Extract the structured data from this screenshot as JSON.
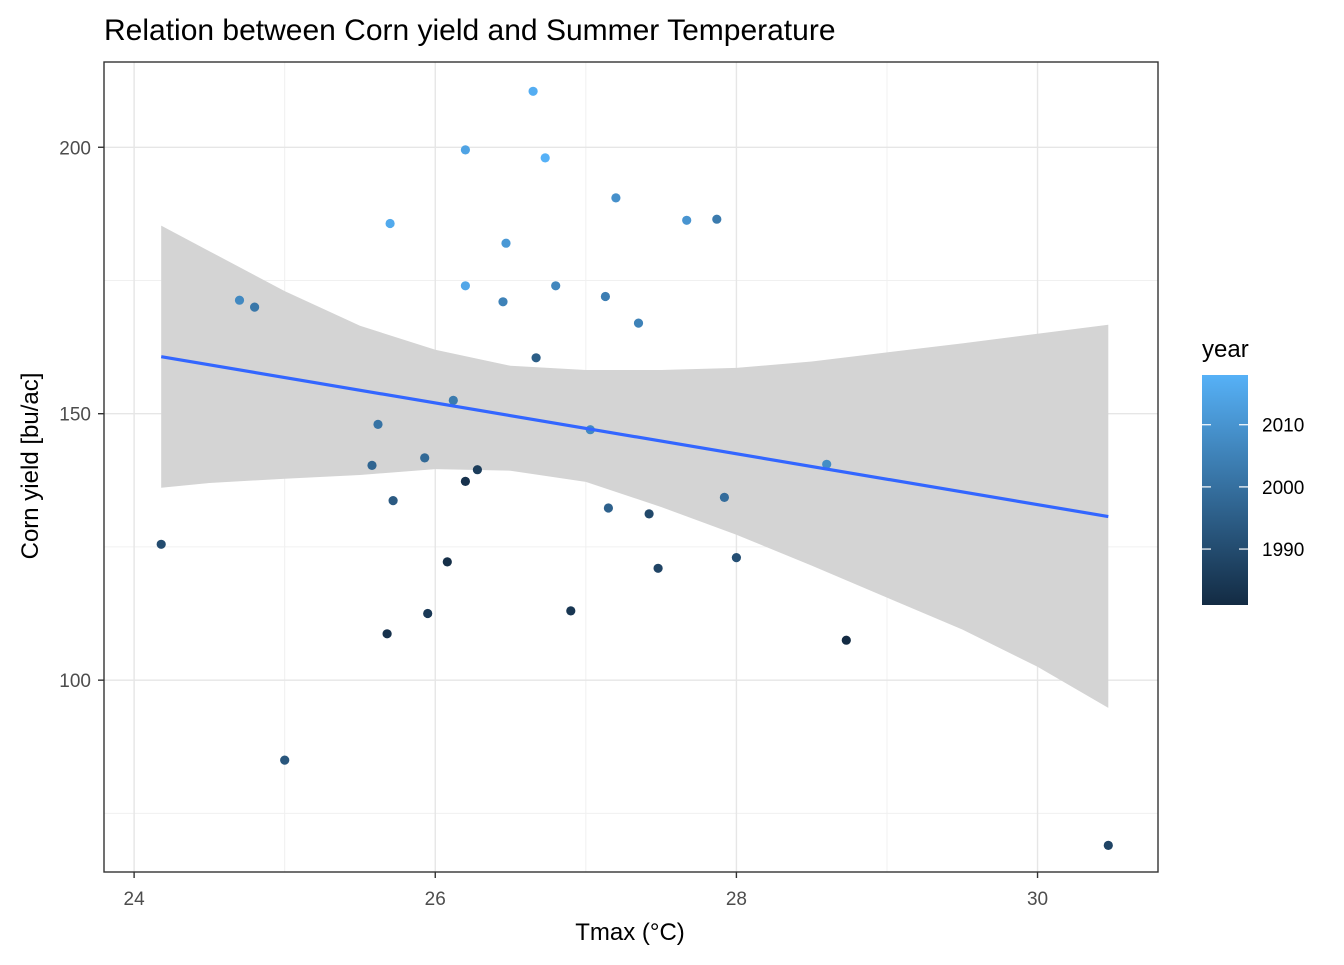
{
  "chart_data": {
    "type": "scatter",
    "title": "Relation between Corn yield and Summer Temperature",
    "xlabel": "Tmax (°C)",
    "ylabel": "Corn yield [bu/ac]",
    "xlim": [
      23.8,
      30.8
    ],
    "ylim": [
      64,
      216
    ],
    "x_ticks": [
      24,
      26,
      28,
      30
    ],
    "y_ticks": [
      100,
      150,
      200
    ],
    "grid": true,
    "legend": {
      "title": "year",
      "position": "right",
      "type": "colorbar",
      "range": [
        1981,
        2018
      ],
      "ticks": [
        1990,
        2000,
        2010
      ],
      "low_color": "#132B43",
      "high_color": "#56B1F7"
    },
    "points": [
      {
        "x": 26.65,
        "y": 210.5,
        "year": 2017
      },
      {
        "x": 26.2,
        "y": 199.5,
        "year": 2014
      },
      {
        "x": 26.73,
        "y": 198.0,
        "year": 2018
      },
      {
        "x": 27.2,
        "y": 190.5,
        "year": 2009
      },
      {
        "x": 27.87,
        "y": 186.5,
        "year": 2003
      },
      {
        "x": 27.67,
        "y": 186.3,
        "year": 2010
      },
      {
        "x": 25.7,
        "y": 185.7,
        "year": 2016
      },
      {
        "x": 26.47,
        "y": 182.0,
        "year": 2011
      },
      {
        "x": 26.2,
        "y": 174.0,
        "year": 2015
      },
      {
        "x": 26.8,
        "y": 174.0,
        "year": 2006
      },
      {
        "x": 27.13,
        "y": 172.0,
        "year": 2004
      },
      {
        "x": 24.7,
        "y": 171.3,
        "year": 2007
      },
      {
        "x": 26.45,
        "y": 171.0,
        "year": 2005
      },
      {
        "x": 24.8,
        "y": 170.0,
        "year": 2002
      },
      {
        "x": 27.35,
        "y": 167.0,
        "year": 2005
      },
      {
        "x": 26.67,
        "y": 160.5,
        "year": 1995
      },
      {
        "x": 26.12,
        "y": 152.5,
        "year": 2003
      },
      {
        "x": 25.62,
        "y": 148.0,
        "year": 2001
      },
      {
        "x": 27.03,
        "y": 147.0,
        "year": 2007
      },
      {
        "x": 25.93,
        "y": 141.7,
        "year": 1998
      },
      {
        "x": 28.6,
        "y": 140.5,
        "year": 2008
      },
      {
        "x": 25.58,
        "y": 140.3,
        "year": 1997
      },
      {
        "x": 26.28,
        "y": 139.5,
        "year": 1986
      },
      {
        "x": 26.2,
        "y": 137.3,
        "year": 1983
      },
      {
        "x": 27.92,
        "y": 134.3,
        "year": 1999
      },
      {
        "x": 25.72,
        "y": 133.7,
        "year": 1994
      },
      {
        "x": 27.15,
        "y": 132.3,
        "year": 1996
      },
      {
        "x": 27.42,
        "y": 131.2,
        "year": 1989
      },
      {
        "x": 24.18,
        "y": 125.5,
        "year": 1990
      },
      {
        "x": 28.0,
        "y": 123.0,
        "year": 1991
      },
      {
        "x": 26.08,
        "y": 122.2,
        "year": 1982
      },
      {
        "x": 27.48,
        "y": 121.0,
        "year": 1988
      },
      {
        "x": 26.9,
        "y": 113.0,
        "year": 1984
      },
      {
        "x": 25.95,
        "y": 112.5,
        "year": 1985
      },
      {
        "x": 25.68,
        "y": 108.7,
        "year": 1983
      },
      {
        "x": 28.73,
        "y": 107.5,
        "year": 1981
      },
      {
        "x": 25.0,
        "y": 85.0,
        "year": 1993
      },
      {
        "x": 30.47,
        "y": 69.0,
        "year": 1988
      }
    ],
    "fit_line": {
      "x": [
        24.18,
        30.47
      ],
      "y": [
        160.7,
        130.7
      ],
      "color": "#3366FF"
    },
    "confidence_band": {
      "color": "#D4D4D4",
      "x": [
        24.18,
        24.5,
        25.0,
        25.5,
        26.0,
        26.5,
        27.0,
        27.5,
        28.0,
        28.5,
        29.0,
        29.5,
        30.0,
        30.47
      ],
      "upper": [
        185.3,
        180.5,
        173.0,
        166.5,
        162.0,
        159.0,
        158.2,
        158.2,
        158.6,
        159.8,
        161.5,
        163.2,
        165.0,
        166.7
      ],
      "lower": [
        136.1,
        137.0,
        137.8,
        138.5,
        139.6,
        139.3,
        137.2,
        132.5,
        127.3,
        121.5,
        115.5,
        109.5,
        102.5,
        94.8
      ]
    }
  }
}
